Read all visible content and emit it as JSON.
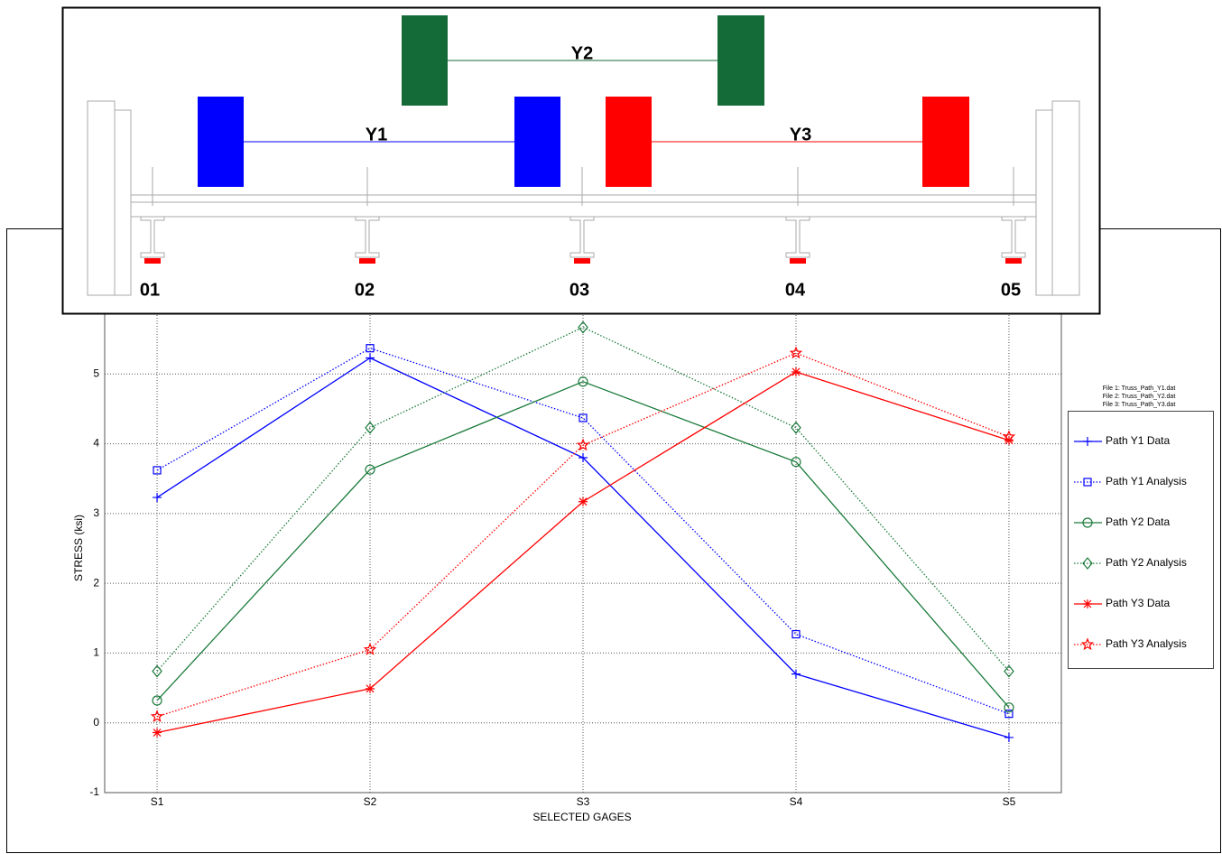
{
  "chart_data": {
    "type": "line",
    "xlabel": "SELECTED GAGES",
    "ylabel": "STRESS (ksi)",
    "annotations": [
      "File 1: Truss_Path_Y1.dat",
      "File 2: Truss_Path_Y2.dat",
      "File 3: Truss_Path_Y3.dat"
    ],
    "categories": [
      "S1",
      "S2",
      "S3",
      "S4",
      "S5"
    ],
    "series": [
      {
        "name": "Path Y1 Data",
        "color": "#0000ff",
        "marker": "plus",
        "linestyle": "solid",
        "values": [
          3.23,
          5.23,
          3.8,
          0.7,
          -0.21
        ]
      },
      {
        "name": "Path Y1 Analysis",
        "color": "#0000ff",
        "marker": "square",
        "linestyle": "dotted",
        "values": [
          3.62,
          5.37,
          4.37,
          1.27,
          0.13
        ]
      },
      {
        "name": "Path Y2 Data",
        "color": "#1a7a3a",
        "marker": "circle",
        "linestyle": "solid",
        "values": [
          0.32,
          3.63,
          4.89,
          3.74,
          0.22
        ]
      },
      {
        "name": "Path Y2 Analysis",
        "color": "#1a7a3a",
        "marker": "diamond",
        "linestyle": "dotted",
        "values": [
          0.74,
          4.23,
          5.67,
          4.23,
          0.74
        ]
      },
      {
        "name": "Path Y3 Data",
        "color": "#ff0000",
        "marker": "asterisk",
        "linestyle": "solid",
        "values": [
          -0.14,
          0.49,
          3.17,
          5.03,
          4.05
        ]
      },
      {
        "name": "Path Y3 Analysis",
        "color": "#ff0000",
        "marker": "star",
        "linestyle": "dotted",
        "values": [
          0.09,
          1.05,
          3.98,
          5.3,
          4.1
        ]
      }
    ],
    "ylim": [
      -1,
      6
    ],
    "yticks": [
      -1,
      0,
      1,
      2,
      3,
      4,
      5
    ],
    "grid": true,
    "legend": "right"
  },
  "diagram": {
    "paths": [
      "Y1",
      "Y2",
      "Y3"
    ],
    "gages": [
      "01",
      "02",
      "03",
      "04",
      "05"
    ]
  }
}
